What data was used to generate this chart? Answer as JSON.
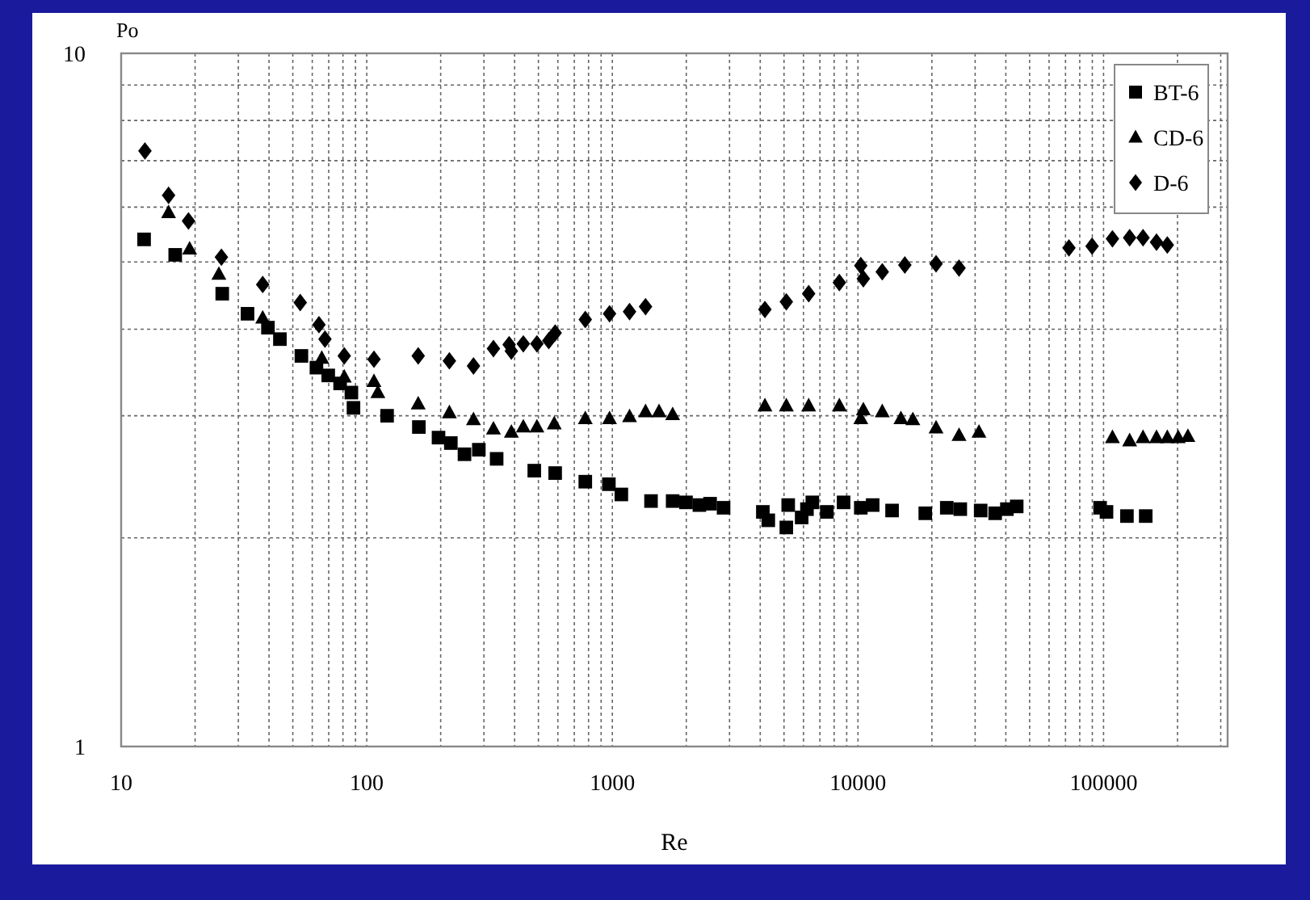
{
  "chart_data": {
    "type": "scatter",
    "xlabel": "Re",
    "ylabel": "Po",
    "log": "xy",
    "grid": true,
    "legend": "top right",
    "xlim": [
      10,
      320000
    ],
    "ylim": [
      1,
      10
    ],
    "xticks": [
      10,
      {
        "value": 20,
        "label": null
      },
      {
        "value": 30,
        "label": null
      },
      {
        "value": 40,
        "label": null
      },
      {
        "value": 50,
        "label": null
      },
      {
        "value": 60,
        "label": null
      },
      {
        "value": 70,
        "label": null
      },
      {
        "value": 80,
        "label": null
      },
      {
        "value": 90,
        "label": null
      },
      100,
      {
        "value": 200,
        "label": null
      },
      {
        "value": 300,
        "label": null
      },
      {
        "value": 400,
        "label": null
      },
      {
        "value": 500,
        "label": null
      },
      {
        "value": 600,
        "label": null
      },
      {
        "value": 700,
        "label": null
      },
      {
        "value": 800,
        "label": null
      },
      {
        "value": 900,
        "label": null
      },
      1000,
      {
        "value": 2000,
        "label": null
      },
      {
        "value": 3000,
        "label": null
      },
      {
        "value": 4000,
        "label": null
      },
      {
        "value": 5000,
        "label": null
      },
      {
        "value": 6000,
        "label": null
      },
      {
        "value": 7000,
        "label": null
      },
      {
        "value": 8000,
        "label": null
      },
      {
        "value": 9000,
        "label": null
      },
      10000,
      {
        "value": 20000,
        "label": null
      },
      {
        "value": 30000,
        "label": null
      },
      {
        "value": 40000,
        "label": null
      },
      {
        "value": 50000,
        "label": null
      },
      {
        "value": 60000,
        "label": null
      },
      {
        "value": 70000,
        "label": null
      },
      {
        "value": 80000,
        "label": null
      },
      {
        "value": 90000,
        "label": null
      },
      100000,
      {
        "value": 200000,
        "label": null
      },
      {
        "value": 300000,
        "label": null
      }
    ],
    "yticks": [
      1,
      {
        "value": 2,
        "label": null
      },
      {
        "value": 3,
        "label": null
      },
      {
        "value": 4,
        "label": null
      },
      {
        "value": 5,
        "label": null
      },
      {
        "value": 6,
        "label": null
      },
      {
        "value": 7,
        "label": null
      },
      {
        "value": 8,
        "label": null
      },
      {
        "value": 9,
        "label": null
      },
      10
    ],
    "series": [
      {
        "name": "BT-6",
        "color": "#000000",
        "marker": "square",
        "x": [
          12.4,
          16.6,
          25.8,
          32.7,
          39.6,
          44.3,
          54.2,
          62.4,
          69.7,
          77.9,
          86.6,
          88.3,
          121,
          163,
          196,
          220,
          250,
          286,
          338,
          481,
          585,
          776,
          968,
          1088,
          1437,
          1760,
          1995,
          2262,
          2500,
          2837,
          4100,
          4314,
          5110,
          5200,
          5900,
          6200,
          6520,
          7470,
          8740,
          10270,
          11480,
          13770,
          18800,
          23000,
          26100,
          31600,
          36200,
          40400,
          44300,
          96800,
          102800,
          124500,
          148500
        ],
        "values": [
          5.39,
          5.12,
          4.5,
          4.21,
          4.02,
          3.87,
          3.66,
          3.52,
          3.43,
          3.34,
          3.24,
          3.08,
          3.0,
          2.89,
          2.79,
          2.74,
          2.64,
          2.68,
          2.6,
          2.5,
          2.48,
          2.41,
          2.39,
          2.31,
          2.26,
          2.26,
          2.25,
          2.23,
          2.24,
          2.21,
          2.18,
          2.12,
          2.07,
          2.23,
          2.14,
          2.2,
          2.25,
          2.18,
          2.25,
          2.21,
          2.23,
          2.19,
          2.17,
          2.21,
          2.2,
          2.19,
          2.17,
          2.2,
          2.22,
          2.21,
          2.18,
          2.15,
          2.15
        ]
      },
      {
        "name": "CD-6",
        "color": "#000000",
        "marker": "triangle",
        "x": [
          15.6,
          19,
          25,
          37.7,
          65.6,
          81,
          107,
          111,
          162,
          217,
          272,
          328,
          388,
          434,
          493,
          580,
          776,
          974,
          1175,
          1365,
          1549,
          1760,
          4180,
          5110,
          6300,
          8400,
          10270,
          10520,
          12560,
          14960,
          16730,
          20800,
          25800,
          31100,
          108700,
          127700,
          144800,
          164300,
          181800,
          201400,
          220500
        ],
        "values": [
          5.89,
          5.22,
          4.8,
          4.15,
          3.63,
          3.41,
          3.36,
          3.24,
          3.12,
          3.03,
          2.96,
          2.87,
          2.84,
          2.89,
          2.89,
          2.92,
          2.97,
          2.97,
          2.99,
          3.04,
          3.04,
          3.01,
          3.1,
          3.1,
          3.1,
          3.1,
          2.97,
          3.06,
          3.04,
          2.97,
          2.96,
          2.88,
          2.81,
          2.84,
          2.79,
          2.76,
          2.79,
          2.79,
          2.79,
          2.79,
          2.8
        ]
      },
      {
        "name": "D-6",
        "color": "#000000",
        "marker": "diamond",
        "x": [
          12.5,
          15.6,
          18.8,
          25.6,
          37.7,
          53.6,
          63.9,
          67.6,
          81,
          107,
          162,
          217,
          272,
          328,
          380,
          388,
          434,
          493,
          551,
          585,
          776,
          974,
          1175,
          1365,
          4180,
          5110,
          6300,
          8400,
          10270,
          10520,
          12560,
          15520,
          20800,
          25800,
          72300,
          89800,
          108700,
          127700,
          144800,
          164300,
          181800
        ],
        "values": [
          7.23,
          6.24,
          5.73,
          5.08,
          4.64,
          4.37,
          4.06,
          3.87,
          3.66,
          3.62,
          3.66,
          3.6,
          3.54,
          3.75,
          3.8,
          3.72,
          3.81,
          3.81,
          3.85,
          3.95,
          4.13,
          4.21,
          4.24,
          4.31,
          4.27,
          4.38,
          4.5,
          4.67,
          4.94,
          4.73,
          4.84,
          4.95,
          4.97,
          4.9,
          5.24,
          5.27,
          5.4,
          5.42,
          5.42,
          5.34,
          5.29
        ]
      }
    ]
  }
}
